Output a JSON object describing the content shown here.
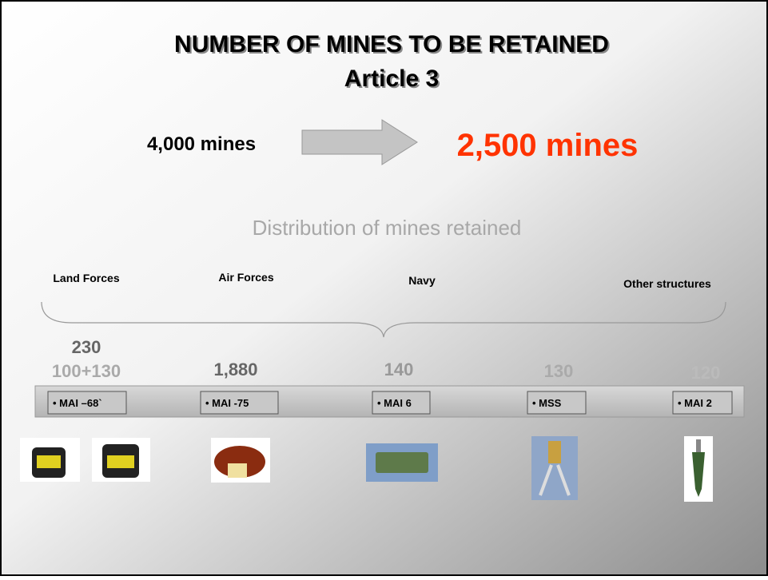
{
  "header": {
    "title": "NUMBER OF MINES TO BE RETAINED",
    "subtitle": "Article 3"
  },
  "change": {
    "from": "4,000 mines",
    "to": "2,500 mines"
  },
  "distribution": {
    "title": "Distribution of mines retained",
    "groups": [
      "Land Forces",
      "Air Forces",
      "Navy",
      "Other structures"
    ],
    "items": [
      {
        "count": "230",
        "detail": "100+130",
        "type": "• MAI –68`"
      },
      {
        "count": "1,880",
        "type": "• MAI -75"
      },
      {
        "count": "140",
        "type": "• MAI 6"
      },
      {
        "count": "130",
        "type": "• MSS"
      },
      {
        "count": "120",
        "type": "• MAI 2"
      }
    ]
  }
}
